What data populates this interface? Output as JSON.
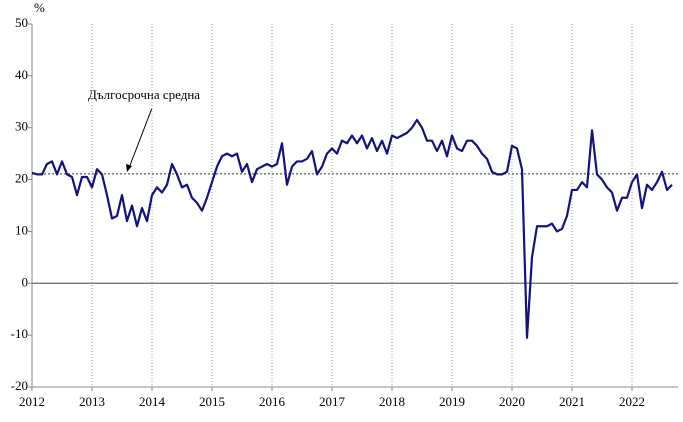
{
  "chart_data": {
    "type": "line",
    "y_label": "%",
    "annotation": "Дългосрочна средна",
    "average": 21.1,
    "categories": [
      "2012",
      null,
      null,
      null,
      null,
      null,
      null,
      null,
      null,
      null,
      null,
      null,
      "2013",
      null,
      null,
      null,
      null,
      null,
      null,
      null,
      null,
      null,
      null,
      null,
      "2014",
      null,
      null,
      null,
      null,
      null,
      null,
      null,
      null,
      null,
      null,
      null,
      "2015",
      null,
      null,
      null,
      null,
      null,
      null,
      null,
      null,
      null,
      null,
      null,
      "2016",
      null,
      null,
      null,
      null,
      null,
      null,
      null,
      null,
      null,
      null,
      null,
      "2017",
      null,
      null,
      null,
      null,
      null,
      null,
      null,
      null,
      null,
      null,
      null,
      "2018",
      null,
      null,
      null,
      null,
      null,
      null,
      null,
      null,
      null,
      null,
      null,
      "2019",
      null,
      null,
      null,
      null,
      null,
      null,
      null,
      null,
      null,
      null,
      null,
      "2020",
      null,
      null,
      null,
      null,
      null,
      null,
      null,
      null,
      null,
      null,
      null,
      "2021",
      null,
      null,
      null,
      null,
      null,
      null,
      null,
      null,
      null,
      null,
      null,
      "2022",
      null,
      null,
      null,
      null,
      null,
      null,
      null,
      null
    ],
    "series": [
      {
        "color": "#13137a",
        "values": [
          21.3,
          21,
          21,
          23,
          23.5,
          21,
          23.5,
          21,
          20.5,
          17,
          20.5,
          20.5,
          18.5,
          22,
          21,
          17,
          12.5,
          13,
          17,
          12,
          15,
          11,
          14.5,
          12,
          17,
          18.5,
          17.5,
          19,
          23,
          21,
          18.5,
          19,
          16.5,
          15.5,
          14,
          16.5,
          19.5,
          22.5,
          24.5,
          25,
          24.5,
          25,
          21.5,
          23,
          19.5,
          22,
          22.5,
          23,
          22.5,
          23,
          27,
          19,
          22.5,
          23.5,
          23.5,
          24,
          25.5,
          21,
          22.5,
          25,
          26,
          25,
          27.5,
          27,
          28.5,
          27,
          28.5,
          26,
          28,
          25.5,
          27.5,
          25,
          28.5,
          28,
          28.5,
          29,
          30,
          31.5,
          30,
          27.5,
          27.5,
          25.5,
          27.5,
          24.5,
          28.5,
          26,
          25.5,
          27.5,
          27.5,
          26.5,
          25,
          24,
          21.5,
          21,
          21,
          21.5,
          26.5,
          26,
          22,
          -10.5,
          5,
          11,
          11,
          11,
          11.5,
          10,
          10.5,
          13,
          18,
          18,
          19.5,
          18.5,
          29.5,
          21,
          20,
          18.5,
          17.5,
          14,
          16.5,
          16.5,
          19.5,
          21,
          14.5,
          19,
          18,
          19.5,
          21.5,
          18,
          19
        ]
      }
    ],
    "ylim": [
      -20,
      50
    ],
    "yticks": [
      -20,
      -10,
      0,
      10,
      20,
      30,
      40,
      50
    ],
    "grid": true
  }
}
